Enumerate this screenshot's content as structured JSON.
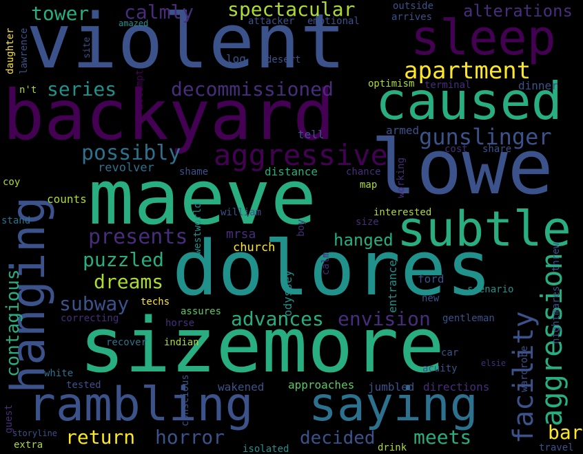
{
  "palette": {
    "background": "#000000",
    "dark_purple": "#440154",
    "purple": "#472d7b",
    "indigo": "#3b528b",
    "blue": "#2c728e",
    "teal": "#21918c",
    "green_teal": "#28ae80",
    "green": "#5ec962",
    "lime": "#addc30",
    "yellow": "#fde725"
  },
  "words": [
    "violent",
    "backyard",
    "maeve",
    "lowe",
    "dolores",
    "sizemore",
    "sleep",
    "caused",
    "subtle",
    "hanging",
    "rambling",
    "saying",
    "apartment",
    "aggressive",
    "decommissioned",
    "gunslinger",
    "spectacular",
    "tower",
    "calmly",
    "alterations",
    "possibly",
    "series",
    "presents",
    "aggression",
    "facility",
    "puzzled",
    "dreams",
    "subway",
    "advances",
    "envision",
    "hanged",
    "contagious",
    "return",
    "horror",
    "decided",
    "meets",
    "bar",
    "revolver",
    "mrsa",
    "church",
    "distance",
    "log",
    "desert",
    "optimism",
    "terminal",
    "dinner",
    "tell",
    "armed",
    "cost",
    "share",
    "shame",
    "chance",
    "map",
    "working",
    "interested",
    "counts",
    "coy",
    "stand",
    "william",
    "westworld",
    "boy",
    "size",
    "odyssey",
    "calm",
    "entrance",
    "ford",
    "scenario",
    "new",
    "techs",
    "assures",
    "horse",
    "correcting",
    "gentleman",
    "nightmares",
    "threw",
    "recover",
    "indian",
    "white",
    "tested",
    "conscious",
    "wakened",
    "approaches",
    "jumbled",
    "directions",
    "car",
    "acuity",
    "elsie",
    "wardrobe",
    "guest",
    "storyline",
    "extra",
    "isolated",
    "drink",
    "travel",
    "daughter",
    "lawrence",
    "n't",
    "attempt",
    "site",
    "amazed",
    "attacker",
    "emotional",
    "outside",
    "arrives"
  ]
}
